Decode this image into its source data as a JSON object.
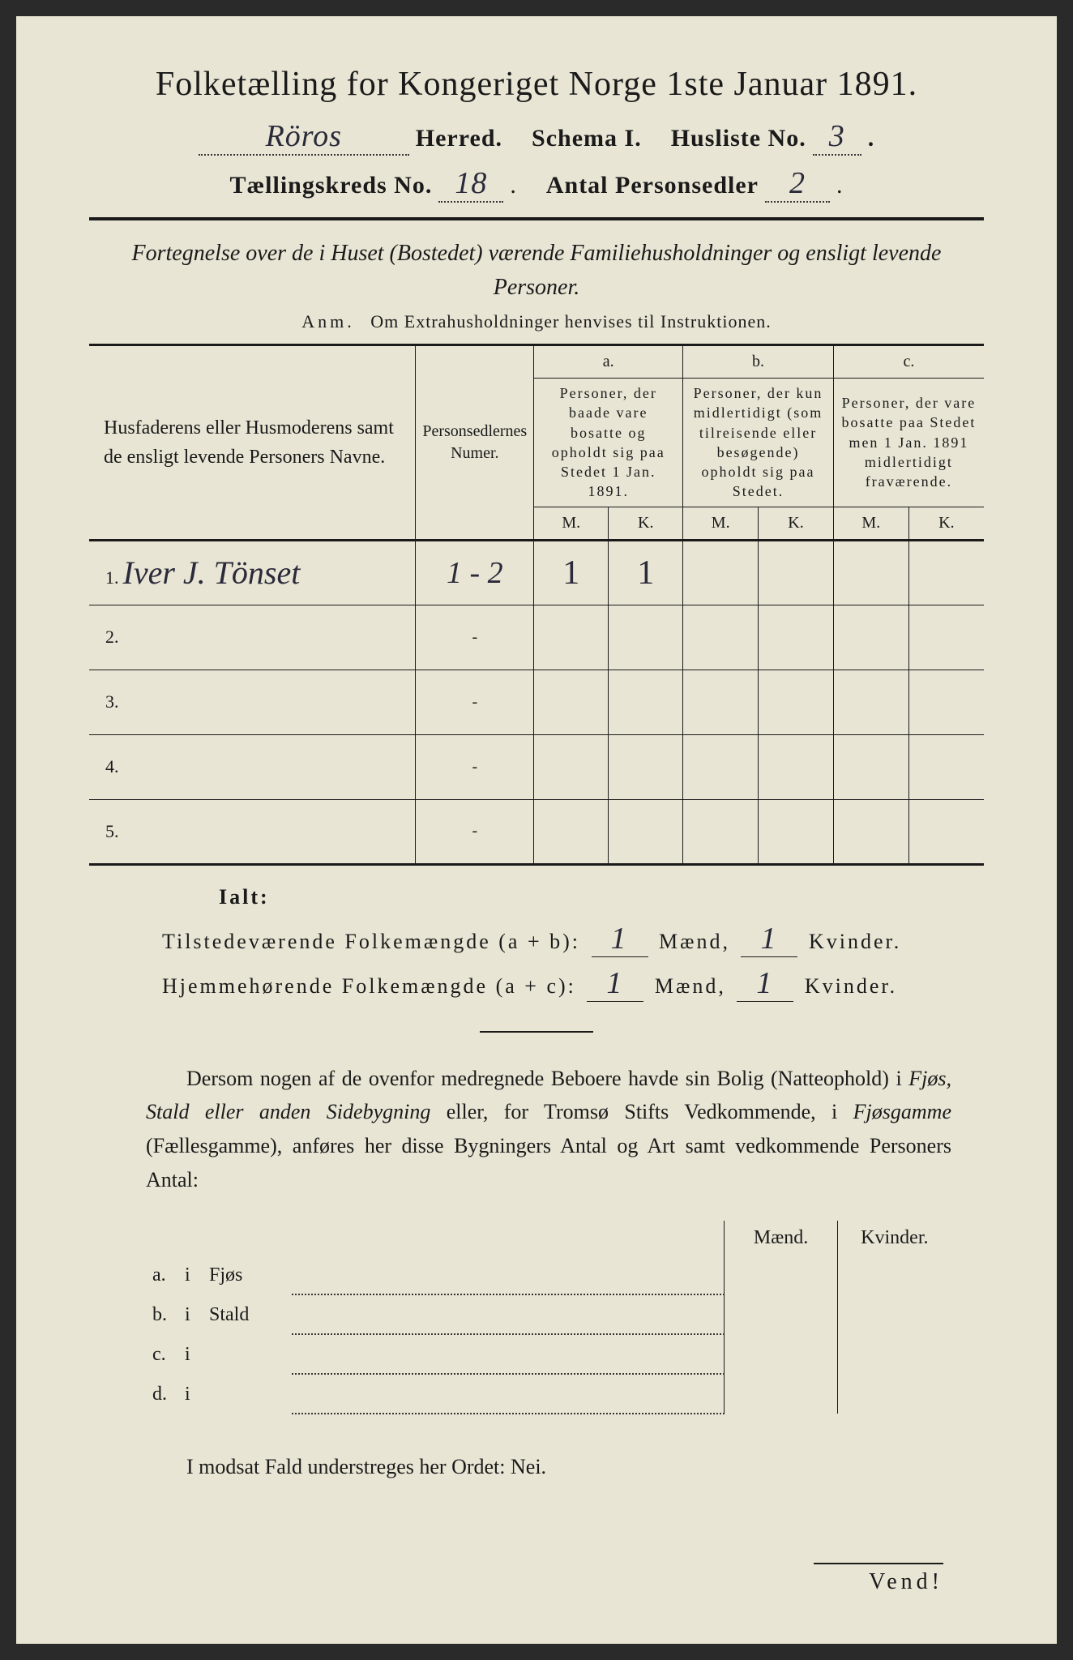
{
  "title": "Folketælling for Kongeriget Norge 1ste Januar 1891.",
  "header": {
    "herred_value": "Röros",
    "herred_label": "Herred.",
    "schema_label": "Schema I.",
    "husliste_label": "Husliste No.",
    "husliste_value": "3",
    "kreds_label": "Tællingskreds No.",
    "kreds_value": "18",
    "personsedler_label": "Antal Personsedler",
    "personsedler_value": "2"
  },
  "subtitle": "Fortegnelse over de i Huset (Bostedet) værende Familiehusholdninger og ensligt levende Personer.",
  "anm_label": "Anm.",
  "anm_text": "Om Extrahusholdninger henvises til Instruktionen.",
  "table": {
    "col1": "Husfaderens eller Husmoderens samt de ensligt levende Personers Navne.",
    "col2": "Personsedlernes Numer.",
    "col_a_label": "a.",
    "col_a": "Personer, der baade vare bosatte og opholdt sig paa Stedet 1 Jan. 1891.",
    "col_b_label": "b.",
    "col_b": "Personer, der kun midlertidigt (som tilreisende eller besøgende) opholdt sig paa Stedet.",
    "col_c_label": "c.",
    "col_c": "Personer, der vare bosatte paa Stedet men 1 Jan. 1891 midlertidigt fraværende.",
    "m": "M.",
    "k": "K.",
    "rows": [
      {
        "n": "1.",
        "name": "Iver J. Tönset",
        "num": "1 - 2",
        "am": "1",
        "ak": "1",
        "bm": "",
        "bk": "",
        "cm": "",
        "ck": ""
      },
      {
        "n": "2.",
        "name": "",
        "num": "-",
        "am": "",
        "ak": "",
        "bm": "",
        "bk": "",
        "cm": "",
        "ck": ""
      },
      {
        "n": "3.",
        "name": "",
        "num": "-",
        "am": "",
        "ak": "",
        "bm": "",
        "bk": "",
        "cm": "",
        "ck": ""
      },
      {
        "n": "4.",
        "name": "",
        "num": "-",
        "am": "",
        "ak": "",
        "bm": "",
        "bk": "",
        "cm": "",
        "ck": ""
      },
      {
        "n": "5.",
        "name": "",
        "num": "-",
        "am": "",
        "ak": "",
        "bm": "",
        "bk": "",
        "cm": "",
        "ck": ""
      }
    ]
  },
  "ialt": "Ialt:",
  "totals": {
    "line1_label": "Tilstedeværende Folkemængde (a + b):",
    "line2_label": "Hjemmehørende Folkemængde (a + c):",
    "maend": "Mænd,",
    "kvinder": "Kvinder.",
    "t_m": "1",
    "t_k": "1",
    "h_m": "1",
    "h_k": "1"
  },
  "para": {
    "p1a": "Dersom nogen af de ovenfor medregnede Beboere havde sin Bolig (Natteophold) i ",
    "p1b": "Fjøs, Stald eller anden Sidebygning",
    "p1c": " eller, for Tromsø Stifts Vedkommende, i ",
    "p1d": "Fjøsgamme",
    "p1e": " (Fællesgamme), anføres her disse Bygningers Antal og Art samt vedkommende Personers Antal:"
  },
  "subtable": {
    "maend": "Mænd.",
    "kvinder": "Kvinder.",
    "rows": [
      {
        "a": "a.",
        "i": "i",
        "label": "Fjøs"
      },
      {
        "a": "b.",
        "i": "i",
        "label": "Stald"
      },
      {
        "a": "c.",
        "i": "i",
        "label": ""
      },
      {
        "a": "d.",
        "i": "i",
        "label": ""
      }
    ]
  },
  "nei": "I modsat Fald understreges her Ordet: Nei.",
  "vend": "Vend!",
  "colors": {
    "paper": "#e8e5d4",
    "ink": "#1a1a1a",
    "handwriting": "#2a2a3a"
  }
}
